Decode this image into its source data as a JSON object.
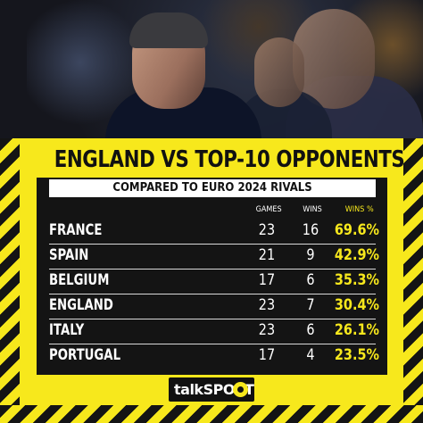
{
  "headline": "ENGLAND VS TOP-10 OPPONENTS",
  "subtitle": "COMPARED TO EURO 2024 RIVALS",
  "columns": {
    "games": "GAMES",
    "wins": "WINS",
    "wins_pct": "WINS %"
  },
  "rows": [
    {
      "team": "FRANCE",
      "games": "23",
      "wins": "16",
      "pct": "69.6%"
    },
    {
      "team": "SPAIN",
      "games": "21",
      "wins": "9",
      "pct": "42.9%"
    },
    {
      "team": "BELGIUM",
      "games": "17",
      "wins": "6",
      "pct": "35.3%"
    },
    {
      "team": "ENGLAND",
      "games": "23",
      "wins": "7",
      "pct": "30.4%"
    },
    {
      "team": "ITALY",
      "games": "23",
      "wins": "6",
      "pct": "26.1%"
    },
    {
      "team": "PORTUGAL",
      "games": "17",
      "wins": "4",
      "pct": "23.5%"
    }
  ],
  "logo": {
    "part1": "talk",
    "part2": "SPORT",
    "icon": "football-icon"
  },
  "colors": {
    "accent": "#f7e81c",
    "panel": "#141414",
    "text": "#ffffff"
  }
}
